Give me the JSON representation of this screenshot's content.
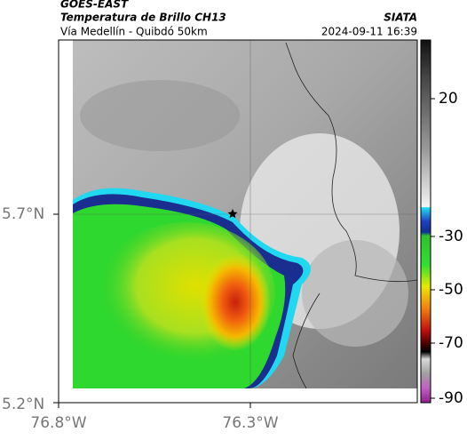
{
  "header": {
    "product": "GOES-EAST",
    "title": "Temperatura de Brillo CH13",
    "subtitle": "Vía Medellín - Quibdó 50km",
    "agency": "SIATA",
    "timestamp": "2024-09-11 16:39"
  },
  "map": {
    "lat_labels": [
      "5.7°N",
      "5.2°N"
    ],
    "lon_labels": [
      "76.8°W",
      "76.3°W"
    ]
  },
  "colorbar": {
    "ticks": [
      20,
      -30,
      -50,
      -70,
      -90
    ]
  }
}
